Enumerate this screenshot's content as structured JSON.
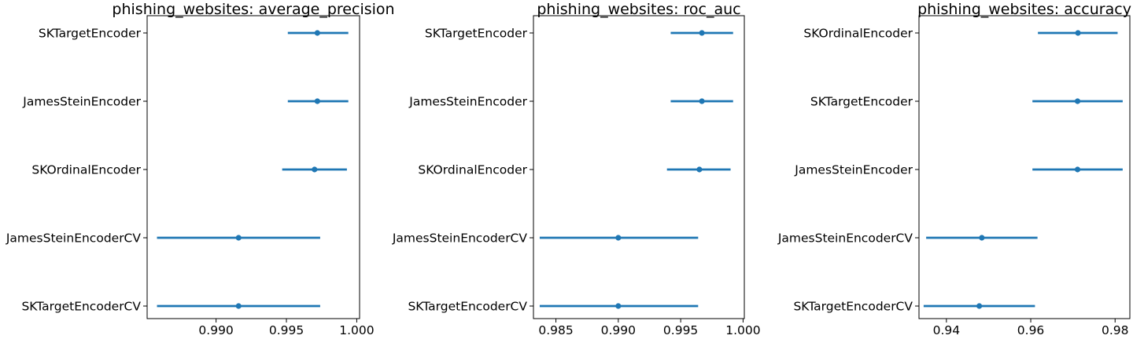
{
  "chart_data": [
    {
      "type": "errorbar",
      "title": "phishing_websites: average_precision",
      "xlim": [
        0.9851,
        1.0002
      ],
      "xticks": [
        "0.990",
        "0.995",
        "1.000"
      ],
      "color": "#1f77b4",
      "rows": [
        {
          "label": "SKTargetEncoder",
          "mean": 0.9972,
          "low": 0.9951,
          "high": 0.9994
        },
        {
          "label": "JamesSteinEncoder",
          "mean": 0.9972,
          "low": 0.9951,
          "high": 0.9994
        },
        {
          "label": "SKOrdinalEncoder",
          "mean": 0.997,
          "low": 0.9947,
          "high": 0.9993
        },
        {
          "label": "JamesSteinEncoderCV",
          "mean": 0.9916,
          "low": 0.9858,
          "high": 0.9974
        },
        {
          "label": "SKTargetEncoderCV",
          "mean": 0.9916,
          "low": 0.9858,
          "high": 0.9974
        }
      ]
    },
    {
      "type": "errorbar",
      "title": "phishing_websites: roc_auc",
      "xlim": [
        0.9832,
        1.0001
      ],
      "xticks": [
        "0.985",
        "0.990",
        "0.995",
        "1.000"
      ],
      "color": "#1f77b4",
      "rows": [
        {
          "label": "SKTargetEncoder",
          "mean": 0.9967,
          "low": 0.9942,
          "high": 0.9992
        },
        {
          "label": "JamesSteinEncoder",
          "mean": 0.9967,
          "low": 0.9942,
          "high": 0.9992
        },
        {
          "label": "SKOrdinalEncoder",
          "mean": 0.9965,
          "low": 0.9939,
          "high": 0.999
        },
        {
          "label": "JamesSteinEncoderCV",
          "mean": 0.99,
          "low": 0.9837,
          "high": 0.9964
        },
        {
          "label": "SKTargetEncoderCV",
          "mean": 0.99,
          "low": 0.9837,
          "high": 0.9964
        }
      ]
    },
    {
      "type": "errorbar",
      "title": "phishing_websites: accuracy",
      "xlim": [
        0.9335,
        0.9835
      ],
      "xticks": [
        "0.94",
        "0.96",
        "0.98"
      ],
      "color": "#1f77b4",
      "rows": [
        {
          "label": "SKOrdinalEncoder",
          "mean": 0.9712,
          "low": 0.9617,
          "high": 0.9806
        },
        {
          "label": "SKTargetEncoder",
          "mean": 0.9711,
          "low": 0.9604,
          "high": 0.9818
        },
        {
          "label": "JamesSteinEncoder",
          "mean": 0.9711,
          "low": 0.9604,
          "high": 0.9818
        },
        {
          "label": "JamesSteinEncoderCV",
          "mean": 0.9484,
          "low": 0.9352,
          "high": 0.9616
        },
        {
          "label": "SKTargetEncoderCV",
          "mean": 0.9478,
          "low": 0.9346,
          "high": 0.961
        }
      ]
    }
  ]
}
